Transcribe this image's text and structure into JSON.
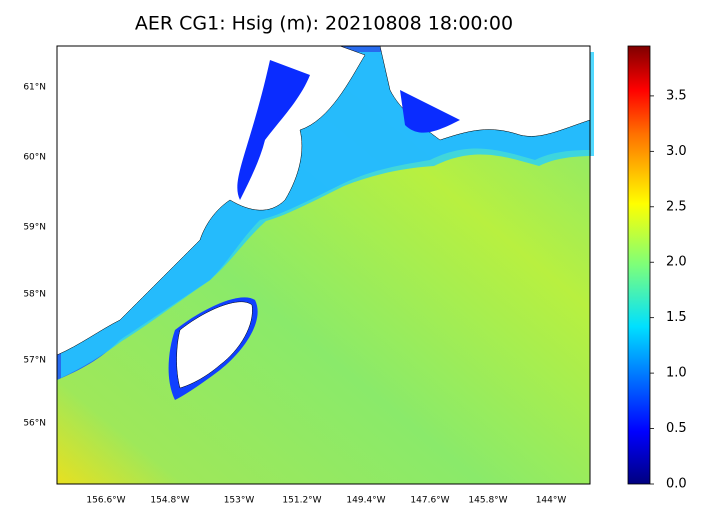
{
  "title": "AER CG1: Hsig (m): 20210808 18:00:00",
  "map": {
    "lat_labels": [
      "61°N",
      "60°N",
      "59°N",
      "58°N",
      "57°N",
      "56°N"
    ],
    "lon_labels": [
      "156.6°W",
      "154.8°W",
      "153°W",
      "151.2°W",
      "149.4°W",
      "147.6°W",
      "145.8°W",
      "144°W"
    ]
  },
  "colorbar": {
    "lim": [
      0,
      3.95
    ],
    "ticks": [
      {
        "value": 0,
        "label": "0.0"
      },
      {
        "value": 0.5,
        "label": "0.5"
      },
      {
        "value": 1,
        "label": "1.0"
      },
      {
        "value": 1.5,
        "label": "1.5"
      },
      {
        "value": 2,
        "label": "2.0"
      },
      {
        "value": 2.5,
        "label": "2.5"
      },
      {
        "value": 3,
        "label": "3.0"
      },
      {
        "value": 3.5,
        "label": "3.5"
      }
    ]
  }
}
